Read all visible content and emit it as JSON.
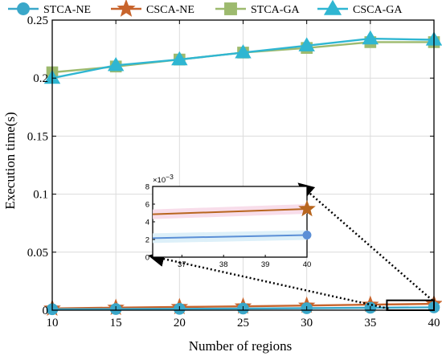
{
  "chart_data": {
    "type": "line",
    "title": "",
    "xlabel": "Number of regions",
    "ylabel": "Execution time(s)",
    "x": [
      10,
      15,
      20,
      25,
      30,
      35,
      40
    ],
    "xlim": [
      10,
      40
    ],
    "ylim": [
      0,
      0.25
    ],
    "x_ticks": [
      "10",
      "15",
      "20",
      "25",
      "30",
      "35",
      "40"
    ],
    "y_ticks": [
      "0",
      "0.05",
      "0.1",
      "0.15",
      "0.2",
      "0.25"
    ],
    "grid": true,
    "legend": "top",
    "series": [
      {
        "name": "STCA-NE",
        "color": "#3aa7c9",
        "marker": "circle",
        "values": [
          0.0008,
          0.001,
          0.0012,
          0.0014,
          0.0017,
          0.0021,
          0.0025
        ]
      },
      {
        "name": "CSCA-NE",
        "color": "#c8642c",
        "marker": "star",
        "values": [
          0.0015,
          0.0022,
          0.0028,
          0.0033,
          0.004,
          0.0048,
          0.0055
        ]
      },
      {
        "name": "STCA-GA",
        "color": "#9dba6e",
        "marker": "square",
        "values": [
          0.205,
          0.21,
          0.216,
          0.222,
          0.226,
          0.231,
          0.231
        ]
      },
      {
        "name": "CSCA-GA",
        "color": "#2fb6d2",
        "marker": "triangle",
        "values": [
          0.2,
          0.211,
          0.216,
          0.222,
          0.228,
          0.234,
          0.233
        ]
      }
    ],
    "inset": {
      "xlim": [
        36.3,
        40
      ],
      "ylim": [
        0,
        8
      ],
      "x_ticks": [
        "37",
        "38",
        "39",
        "40"
      ],
      "y_ticks": [
        "0",
        "2",
        "4",
        "6",
        "8"
      ],
      "multiplier_base": "×10",
      "multiplier_exp": "−3",
      "series": [
        {
          "name": "CSCA-NE",
          "color": "#b8661f",
          "marker": "star",
          "x": [
            36.3,
            40
          ],
          "values": [
            4.85,
            5.45
          ]
        },
        {
          "name": "STCA-NE",
          "color": "#5b8fd6",
          "marker": "circle",
          "x": [
            36.3,
            40
          ],
          "values": [
            2.15,
            2.5
          ]
        }
      ]
    }
  }
}
